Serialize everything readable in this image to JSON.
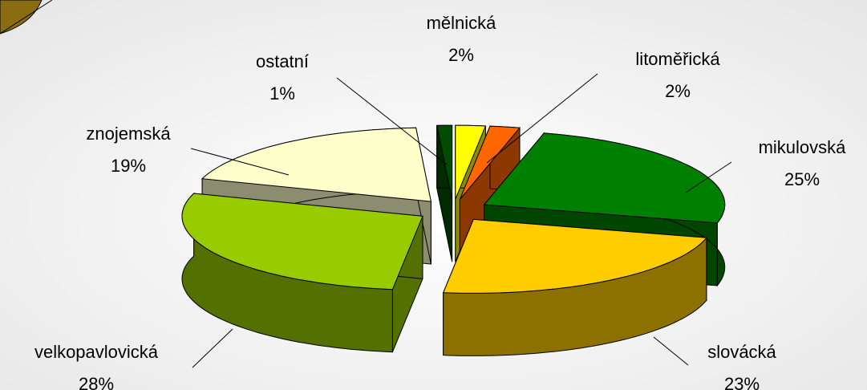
{
  "chart_data": {
    "type": "pie3d",
    "categories": [
      "mělnická",
      "litoměřická",
      "mikulovská",
      "slovácká",
      "velkopavlovická",
      "znojemská",
      "ostatní"
    ],
    "values": [
      2,
      2,
      25,
      23,
      28,
      19,
      1
    ],
    "value_labels": [
      "2%",
      "2%",
      "25%",
      "23%",
      "28%",
      "19%",
      "1%"
    ],
    "colors": [
      "#ffff00",
      "#ff6600",
      "#008000",
      "#ffcc00",
      "#99cc00",
      "#ffffcc",
      "#004d00"
    ]
  }
}
